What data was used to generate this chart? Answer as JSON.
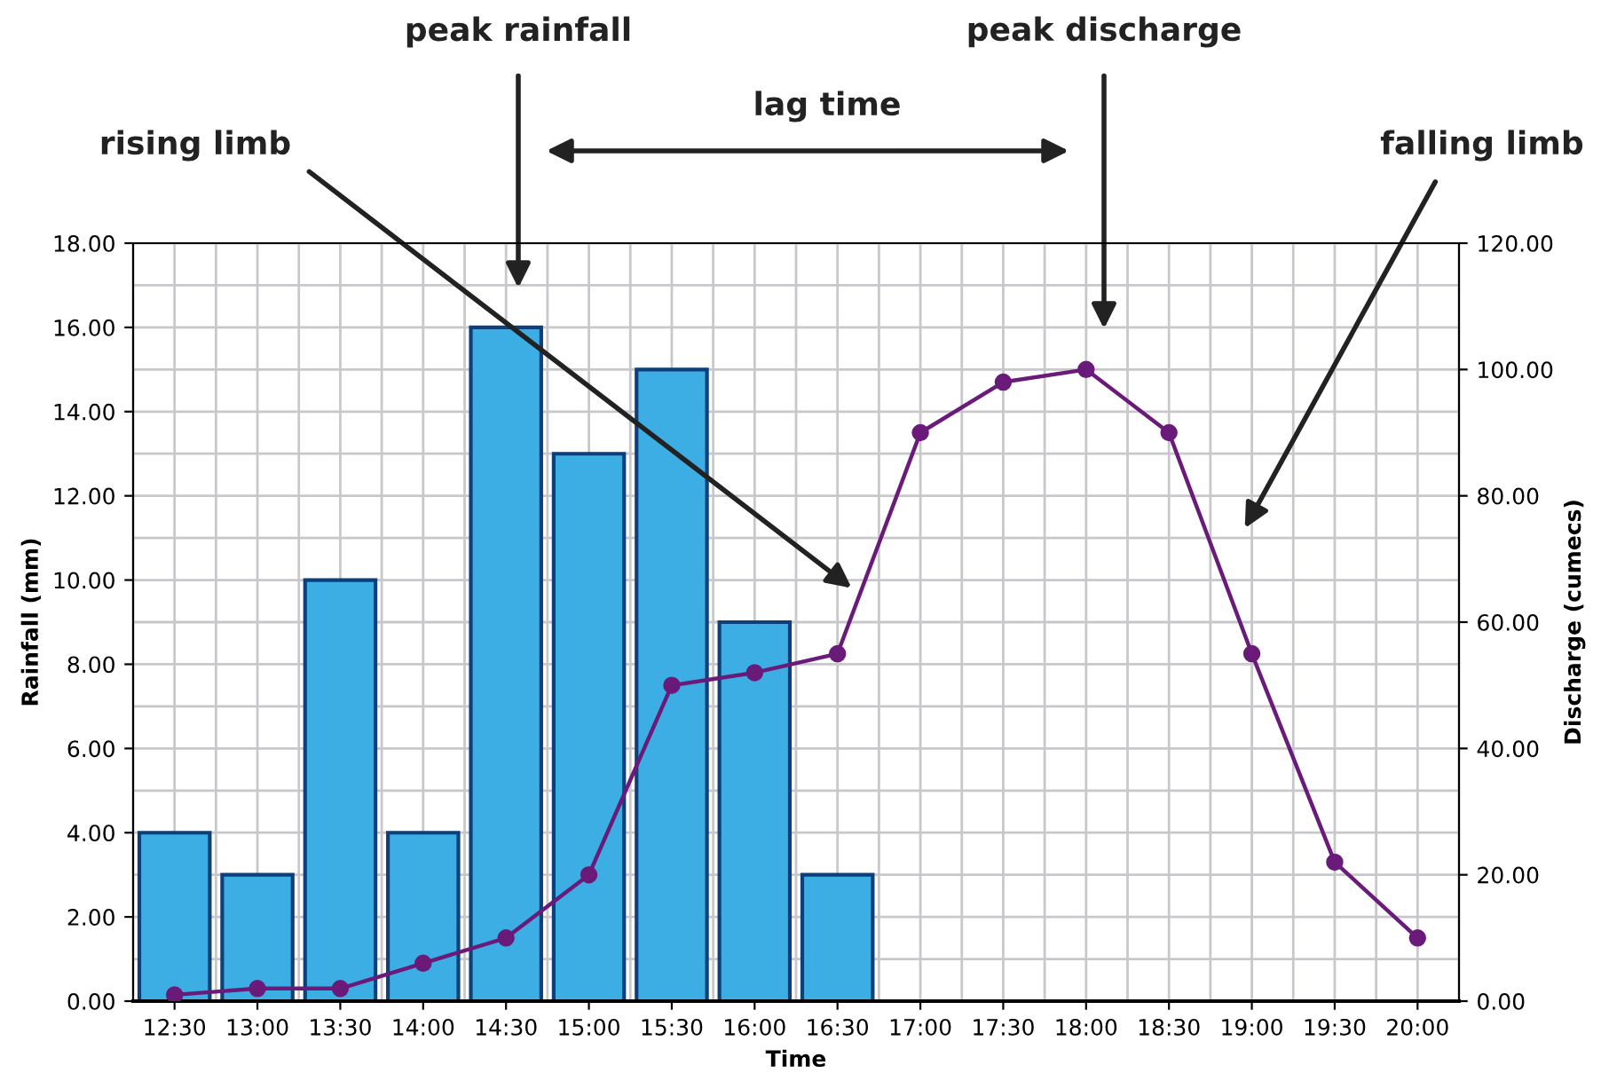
{
  "chart_data": {
    "type": "bar",
    "xlabel": "Time",
    "ylabel": "Rainfall (mm)",
    "y2label": "Discharge (cumecs)",
    "categories": [
      "12:30",
      "13:00",
      "13:30",
      "14:00",
      "14:30",
      "15:00",
      "15:30",
      "16:00",
      "16:30",
      "17:00",
      "17:30",
      "18:00",
      "18:30",
      "19:00",
      "19:30",
      "20:00"
    ],
    "series": [
      {
        "color": "#3daee3",
        "values": [
          4,
          3,
          10,
          4,
          16,
          13,
          15,
          9,
          3,
          null,
          null,
          null,
          null,
          null,
          null,
          null
        ]
      },
      {
        "type": "line",
        "axis": "y2",
        "color": "#6a1b7a",
        "marker": "circle",
        "line_style": "solid",
        "values": [
          1,
          2,
          2,
          6,
          10,
          20,
          50,
          52,
          55,
          90,
          98,
          100,
          90,
          55,
          22,
          10
        ]
      }
    ],
    "ylim": [
      0,
      18
    ],
    "yticks": [
      {
        "value": 0,
        "label": "0.00"
      },
      {
        "value": 2,
        "label": "2.00"
      },
      {
        "value": 4,
        "label": "4.00"
      },
      {
        "value": 6,
        "label": "6.00"
      },
      {
        "value": 8,
        "label": "8.00"
      },
      {
        "value": 10,
        "label": "10.00"
      },
      {
        "value": 12,
        "label": "12.00"
      },
      {
        "value": 14,
        "label": "14.00"
      },
      {
        "value": 16,
        "label": "16.00"
      },
      {
        "value": 18,
        "label": "18.00"
      }
    ],
    "y2lim": [
      0,
      120
    ],
    "y2ticks": [
      {
        "value": 0,
        "label": "0.00"
      },
      {
        "value": 20,
        "label": "20.00"
      },
      {
        "value": 40,
        "label": "40.00"
      },
      {
        "value": 60,
        "label": "60.00"
      },
      {
        "value": 80,
        "label": "80.00"
      },
      {
        "value": 100,
        "label": "100.00"
      },
      {
        "value": 120,
        "label": "120.00"
      }
    ],
    "grid": true,
    "annotations": [
      "peak rainfall",
      "lag time",
      "rising limb",
      "peak discharge",
      "falling limb"
    ]
  }
}
